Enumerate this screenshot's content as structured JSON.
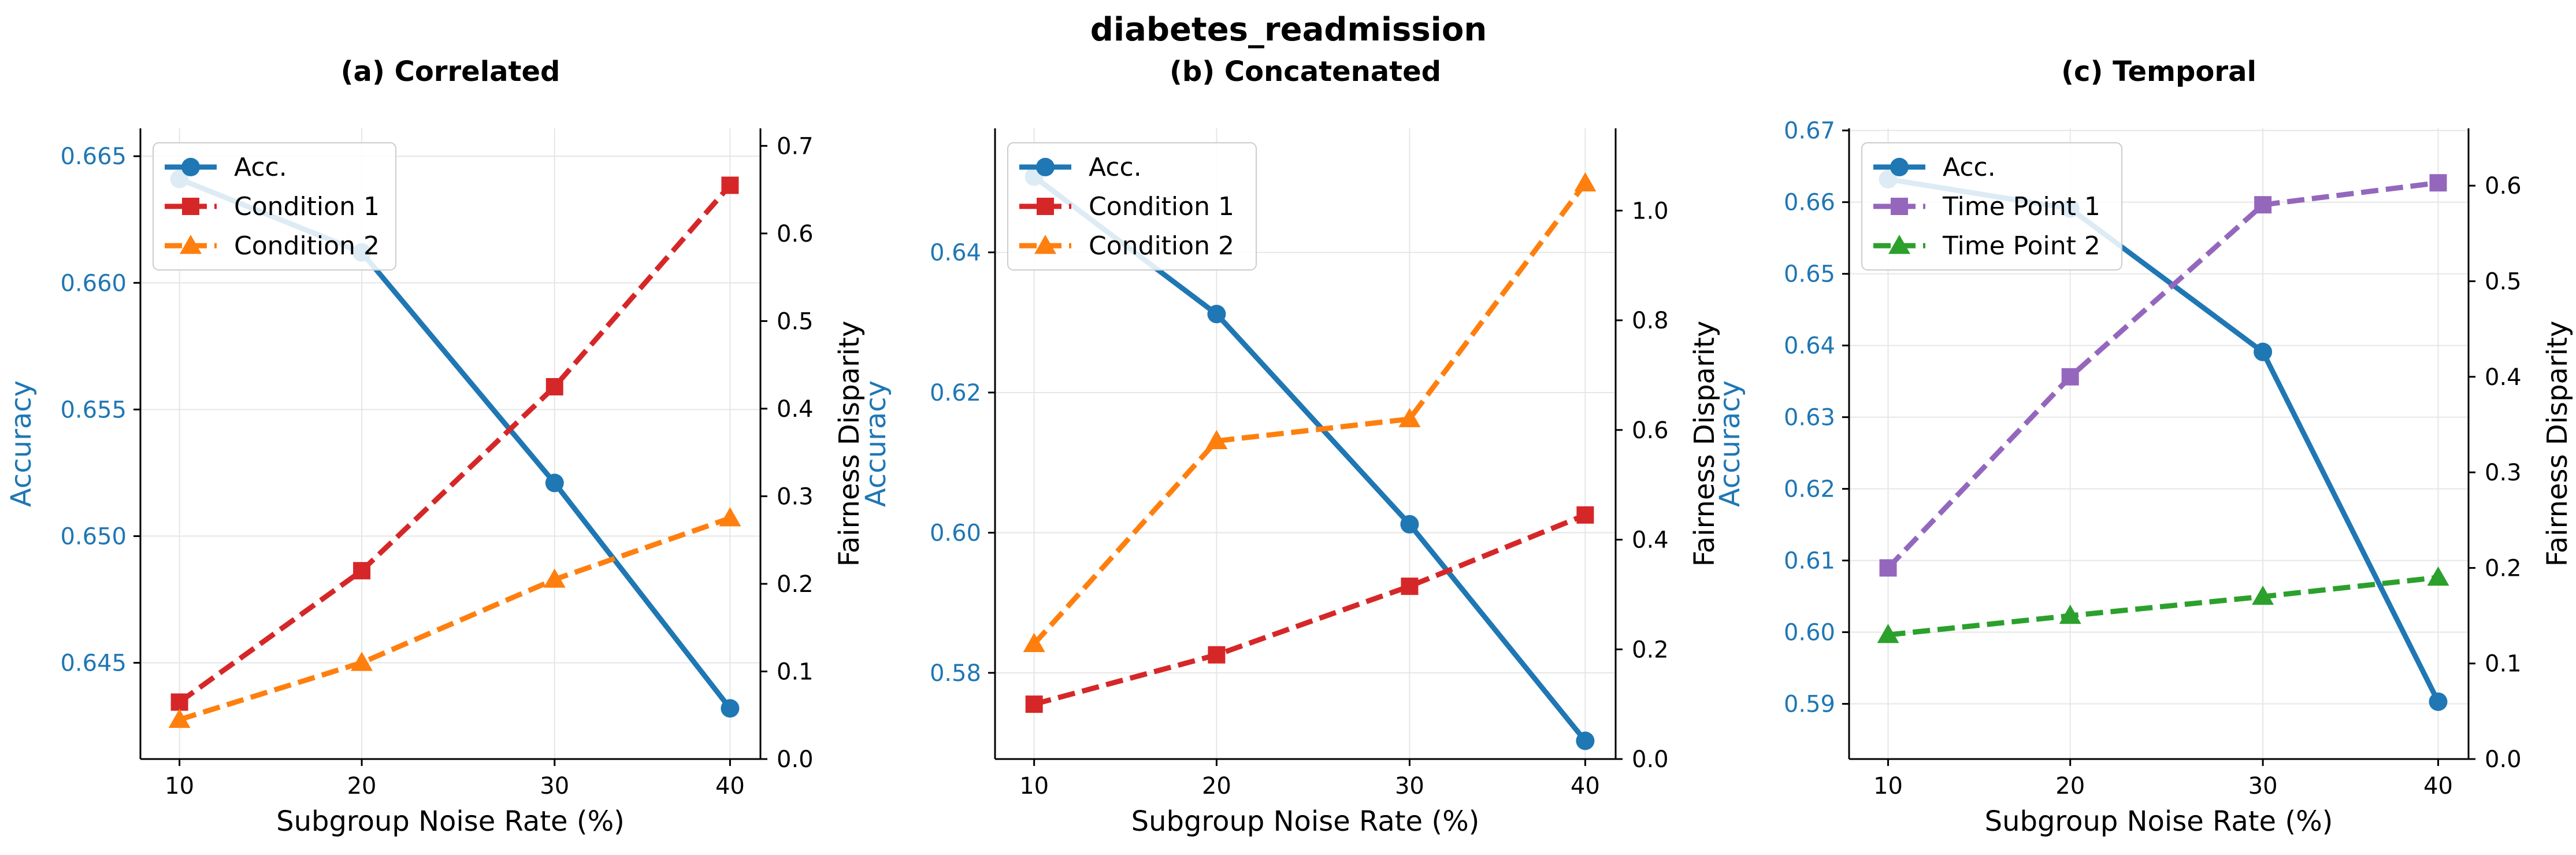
{
  "figure": {
    "title": "diabetes_readmission"
  },
  "colors": {
    "accuracy": "#1f77b4",
    "red": "#d62728",
    "orange": "#ff7f0e",
    "purple": "#9467bd",
    "green": "#2ca02c",
    "grid": "#e6e6e6"
  },
  "chart_data": [
    {
      "type": "line",
      "title": "(a) Correlated",
      "xlabel": "Subgroup Noise Rate (%)",
      "ylabel": "Accuracy",
      "y2label": "Fairness Disparity",
      "x": [
        10,
        20,
        30,
        40
      ],
      "xticks": [
        "10",
        "20",
        "30",
        "40"
      ],
      "ylim": [
        0.6412,
        0.6661
      ],
      "yticks": [
        0.645,
        0.65,
        0.655,
        0.66,
        0.665
      ],
      "ytick_labels": [
        "0.645",
        "0.650",
        "0.655",
        "0.660",
        "0.665"
      ],
      "y2lim": [
        0.0,
        0.72
      ],
      "y2ticks": [
        0,
        0.1,
        0.2,
        0.3,
        0.4,
        0.5,
        0.6,
        0.7
      ],
      "y2tick_labels": [
        "0.0",
        "0.1",
        "0.2",
        "0.3",
        "0.4",
        "0.5",
        "0.6",
        "0.7"
      ],
      "grid": true,
      "legend_position": "top-left",
      "series": [
        {
          "name": "Acc.",
          "axis": "left",
          "values": [
            0.6641,
            0.6612,
            0.6521,
            0.6432
          ],
          "color": "#1f77b4",
          "marker": "circle",
          "dashed": false
        },
        {
          "name": "Condition 1",
          "axis": "right",
          "values": [
            0.065,
            0.215,
            0.425,
            0.655
          ],
          "color": "#d62728",
          "marker": "square",
          "dashed": true
        },
        {
          "name": "Condition 2",
          "axis": "right",
          "values": [
            0.045,
            0.11,
            0.205,
            0.275
          ],
          "color": "#ff7f0e",
          "marker": "triangle",
          "dashed": true
        }
      ]
    },
    {
      "type": "line",
      "title": "(b) Concatenated",
      "xlabel": "Subgroup Noise Rate (%)",
      "ylabel": "Accuracy",
      "y2label": "Fairness Disparity",
      "x": [
        10,
        20,
        30,
        40
      ],
      "xticks": [
        "10",
        "20",
        "30",
        "40"
      ],
      "ylim": [
        0.5677,
        0.6577
      ],
      "yticks": [
        0.58,
        0.6,
        0.62,
        0.64
      ],
      "ytick_labels": [
        "0.58",
        "0.60",
        "0.62",
        "0.64"
      ],
      "y2lim": [
        0.0,
        1.15
      ],
      "y2ticks": [
        0,
        0.2,
        0.4,
        0.6,
        0.8,
        1.0
      ],
      "y2tick_labels": [
        "0.0",
        "0.2",
        "0.4",
        "0.6",
        "0.8",
        "1.0"
      ],
      "grid": true,
      "legend_position": "top-left",
      "series": [
        {
          "name": "Acc.",
          "axis": "left",
          "values": [
            0.6508,
            0.6312,
            0.6012,
            0.5703
          ],
          "color": "#1f77b4",
          "marker": "circle",
          "dashed": false
        },
        {
          "name": "Condition 1",
          "axis": "right",
          "values": [
            0.1,
            0.19,
            0.315,
            0.445
          ],
          "color": "#d62728",
          "marker": "square",
          "dashed": true
        },
        {
          "name": "Condition 2",
          "axis": "right",
          "values": [
            0.21,
            0.58,
            0.62,
            1.05
          ],
          "color": "#ff7f0e",
          "marker": "triangle",
          "dashed": true
        }
      ]
    },
    {
      "type": "line",
      "title": "(c) Temporal",
      "xlabel": "Subgroup Noise Rate (%)",
      "ylabel": "Accuracy",
      "y2label": "Fairness Disparity",
      "x": [
        10,
        20,
        30,
        40
      ],
      "xticks": [
        "10",
        "20",
        "30",
        "40"
      ],
      "ylim": [
        0.5823,
        0.6703
      ],
      "yticks": [
        0.59,
        0.6,
        0.61,
        0.62,
        0.63,
        0.64,
        0.65,
        0.66,
        0.67
      ],
      "ytick_labels": [
        "0.59",
        "0.60",
        "0.61",
        "0.62",
        "0.63",
        "0.64",
        "0.65",
        "0.66",
        "0.67"
      ],
      "y2lim": [
        0.0,
        0.66
      ],
      "y2ticks": [
        0,
        0.1,
        0.2,
        0.3,
        0.4,
        0.5,
        0.6
      ],
      "y2tick_labels": [
        "0.0",
        "0.1",
        "0.2",
        "0.3",
        "0.4",
        "0.5",
        "0.6"
      ],
      "grid": true,
      "legend_position": "top-left",
      "series": [
        {
          "name": "Acc.",
          "axis": "left",
          "values": [
            0.6632,
            0.6591,
            0.6391,
            0.5903
          ],
          "color": "#1f77b4",
          "marker": "circle",
          "dashed": false
        },
        {
          "name": "Time Point 1",
          "axis": "right",
          "values": [
            0.2,
            0.4,
            0.58,
            0.603
          ],
          "color": "#9467bd",
          "marker": "square",
          "dashed": true
        },
        {
          "name": "Time Point 2",
          "axis": "right",
          "values": [
            0.13,
            0.15,
            0.17,
            0.19
          ],
          "color": "#2ca02c",
          "marker": "triangle",
          "dashed": true
        }
      ]
    }
  ]
}
